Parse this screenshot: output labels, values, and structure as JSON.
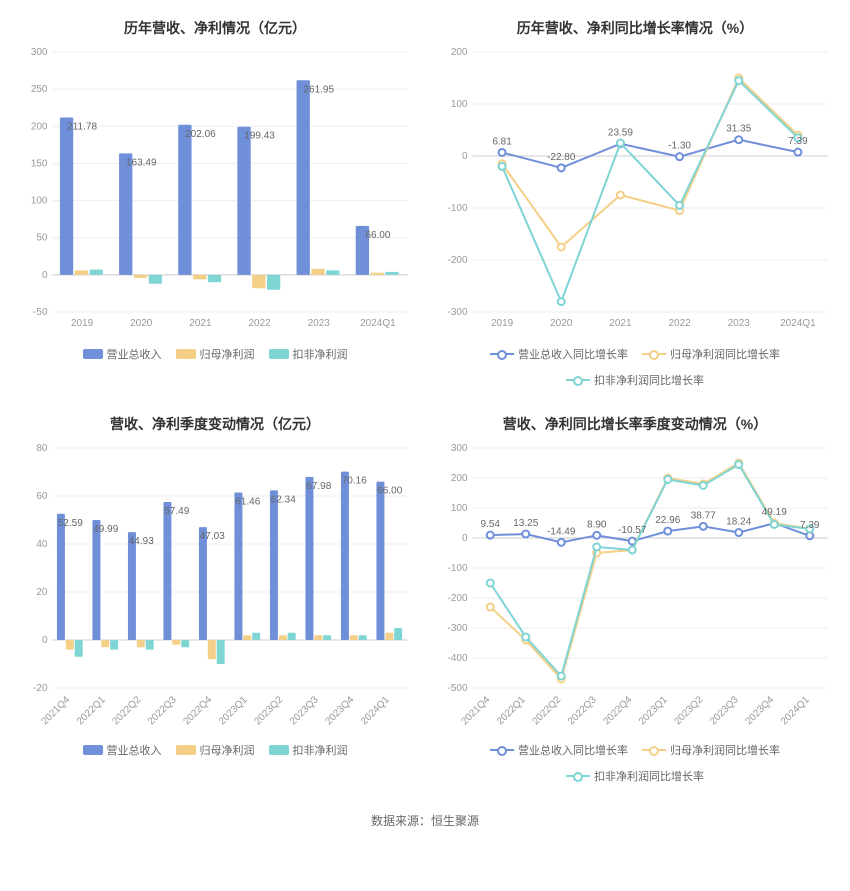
{
  "footer": "数据来源：恒生聚源",
  "palette": {
    "blue": "#6f8fd9",
    "yellow": "#f4cf87",
    "teal": "#7fd4d4",
    "grid": "#eeeeee",
    "axis_text": "#999999",
    "title_text": "#333333",
    "label_text": "#666666",
    "bg": "#ffffff"
  },
  "charts": {
    "annual_bar": {
      "title": "历年营收、净利情况（亿元）",
      "type": "bar",
      "categories": [
        "2019",
        "2020",
        "2021",
        "2022",
        "2023",
        "2024Q1"
      ],
      "ylim": [
        -50,
        300
      ],
      "ytick_step": 50,
      "series": [
        {
          "name": "营业总收入",
          "color": "#6f8fd9",
          "values": [
            211.78,
            163.49,
            202.06,
            199.43,
            261.95,
            66.0
          ],
          "show_labels": true
        },
        {
          "name": "归母净利润",
          "color": "#f4cf87",
          "values": [
            6,
            -4,
            -6,
            -18,
            8,
            3
          ],
          "show_labels": false
        },
        {
          "name": "扣非净利润",
          "color": "#7fd4d4",
          "values": [
            7,
            -12,
            -10,
            -20,
            6,
            4
          ],
          "show_labels": false
        }
      ],
      "bar_width": 0.2
    },
    "annual_growth": {
      "title": "历年营收、净利同比增长率情况（%）",
      "type": "line",
      "categories": [
        "2019",
        "2020",
        "2021",
        "2022",
        "2023",
        "2024Q1"
      ],
      "ylim": [
        -300,
        200
      ],
      "ytick_step": 100,
      "series": [
        {
          "name": "营业总收入同比增长率",
          "color": "#6f8fd9",
          "values": [
            6.81,
            -22.8,
            23.59,
            -1.3,
            31.35,
            7.39
          ],
          "show_labels": true
        },
        {
          "name": "归母净利润同比增长率",
          "color": "#f4cf87",
          "values": [
            -15,
            -175,
            -75,
            -105,
            150,
            40
          ],
          "show_labels": false
        },
        {
          "name": "扣非净利润同比增长率",
          "color": "#7fd4d4",
          "values": [
            -20,
            -280,
            25,
            -95,
            145,
            35
          ],
          "show_labels": false
        }
      ]
    },
    "quarter_bar": {
      "title": "营收、净利季度变动情况（亿元）",
      "type": "bar",
      "categories": [
        "2021Q4",
        "2022Q1",
        "2022Q2",
        "2022Q3",
        "2022Q4",
        "2023Q1",
        "2023Q2",
        "2023Q3",
        "2023Q4",
        "2024Q1"
      ],
      "rotate_x": true,
      "ylim": [
        -20,
        80
      ],
      "ytick_step": 20,
      "series": [
        {
          "name": "营业总收入",
          "color": "#6f8fd9",
          "values": [
            52.59,
            49.99,
            44.93,
            57.49,
            47.03,
            61.46,
            62.34,
            67.98,
            70.16,
            66.0
          ],
          "show_labels": true
        },
        {
          "name": "归母净利润",
          "color": "#f4cf87",
          "values": [
            -4,
            -3,
            -3,
            -2,
            -8,
            2,
            2,
            2,
            2,
            3
          ],
          "show_labels": false
        },
        {
          "name": "扣非净利润",
          "color": "#7fd4d4",
          "values": [
            -7,
            -4,
            -4,
            -3,
            -10,
            3,
            3,
            2,
            2,
            5
          ],
          "show_labels": false
        }
      ],
      "bar_width": 0.22
    },
    "quarter_growth": {
      "title": "营收、净利同比增长率季度变动情况（%）",
      "type": "line",
      "categories": [
        "2021Q4",
        "2022Q1",
        "2022Q2",
        "2022Q3",
        "2022Q4",
        "2023Q1",
        "2023Q2",
        "2023Q3",
        "2023Q4",
        "2024Q1"
      ],
      "rotate_x": true,
      "ylim": [
        -500,
        300
      ],
      "ytick_step": 100,
      "series": [
        {
          "name": "营业总收入同比增长率",
          "color": "#6f8fd9",
          "values": [
            9.54,
            13.25,
            -14.49,
            8.9,
            -10.57,
            22.96,
            38.77,
            18.24,
            49.19,
            7.39
          ],
          "show_labels": true
        },
        {
          "name": "归母净利润同比增长率",
          "color": "#f4cf87",
          "values": [
            -230,
            -340,
            -470,
            -50,
            -40,
            200,
            180,
            250,
            50,
            30
          ],
          "show_labels": false
        },
        {
          "name": "扣非净利润同比增长率",
          "color": "#7fd4d4",
          "values": [
            -150,
            -330,
            -460,
            -30,
            -40,
            195,
            175,
            245,
            45,
            30
          ],
          "show_labels": false
        }
      ]
    }
  }
}
